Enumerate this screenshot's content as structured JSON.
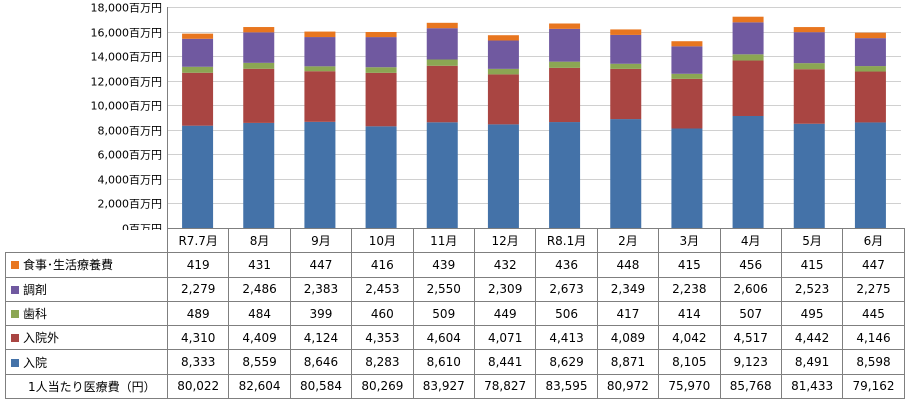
{
  "chart_data": {
    "type": "bar",
    "stacked": true,
    "categories": [
      "R7.7月",
      "8月",
      "9月",
      "10月",
      "11月",
      "12月",
      "R8.1月",
      "2月",
      "3月",
      "4月",
      "5月",
      "6月"
    ],
    "series": [
      {
        "name": "入院",
        "color": "#4472a8",
        "values": [
          8333,
          8559,
          8646,
          8283,
          8610,
          8441,
          8629,
          8871,
          8105,
          9123,
          8491,
          8598
        ]
      },
      {
        "name": "入院外",
        "color": "#a94542",
        "values": [
          4310,
          4409,
          4124,
          4353,
          4604,
          4071,
          4413,
          4089,
          4042,
          4517,
          4442,
          4146
        ]
      },
      {
        "name": "歯科",
        "color": "#8ba653",
        "values": [
          489,
          484,
          399,
          460,
          509,
          449,
          506,
          417,
          414,
          507,
          495,
          445
        ]
      },
      {
        "name": "調剤",
        "color": "#7059a0",
        "values": [
          2279,
          2486,
          2383,
          2453,
          2550,
          2309,
          2673,
          2349,
          2238,
          2606,
          2523,
          2275
        ]
      },
      {
        "name": "食事･生活療養費",
        "color": "#e8761f",
        "values": [
          419,
          431,
          447,
          416,
          439,
          432,
          436,
          448,
          415,
          456,
          415,
          447
        ]
      }
    ],
    "ylim": [
      0,
      18000
    ],
    "yticks": [
      0,
      2000,
      4000,
      6000,
      8000,
      10000,
      12000,
      14000,
      16000,
      18000
    ],
    "ytick_labels": [
      "0百万円",
      "2,000百万円",
      "4,000百万円",
      "6,000百万円",
      "8,000百万円",
      "10,000百万円",
      "12,000百万円",
      "14,000百万円",
      "16,000百万円",
      "18,000百万円"
    ],
    "grid": true,
    "legend": "data-table-rows"
  },
  "table": {
    "row_order": [
      4,
      3,
      2,
      1,
      0
    ],
    "rows_display": [
      {
        "label": "食事･生活療養費",
        "values": [
          "419",
          "431",
          "447",
          "416",
          "439",
          "432",
          "436",
          "448",
          "415",
          "456",
          "415",
          "447"
        ]
      },
      {
        "label": "調剤",
        "values": [
          "2,279",
          "2,486",
          "2,383",
          "2,453",
          "2,550",
          "2,309",
          "2,673",
          "2,349",
          "2,238",
          "2,606",
          "2,523",
          "2,275"
        ]
      },
      {
        "label": "歯科",
        "values": [
          "489",
          "484",
          "399",
          "460",
          "509",
          "449",
          "506",
          "417",
          "414",
          "507",
          "495",
          "445"
        ]
      },
      {
        "label": "入院外",
        "values": [
          "4,310",
          "4,409",
          "4,124",
          "4,353",
          "4,604",
          "4,071",
          "4,413",
          "4,089",
          "4,042",
          "4,517",
          "4,442",
          "4,146"
        ]
      },
      {
        "label": "入院",
        "values": [
          "8,333",
          "8,559",
          "8,646",
          "8,283",
          "8,610",
          "8,441",
          "8,629",
          "8,871",
          "8,105",
          "9,123",
          "8,491",
          "8,598"
        ]
      }
    ],
    "per_capita": {
      "label": "1人当たり医療費（円）",
      "values": [
        "80,022",
        "82,604",
        "80,584",
        "80,269",
        "83,927",
        "78,827",
        "83,595",
        "80,972",
        "75,970",
        "85,768",
        "81,433",
        "79,162"
      ]
    }
  }
}
